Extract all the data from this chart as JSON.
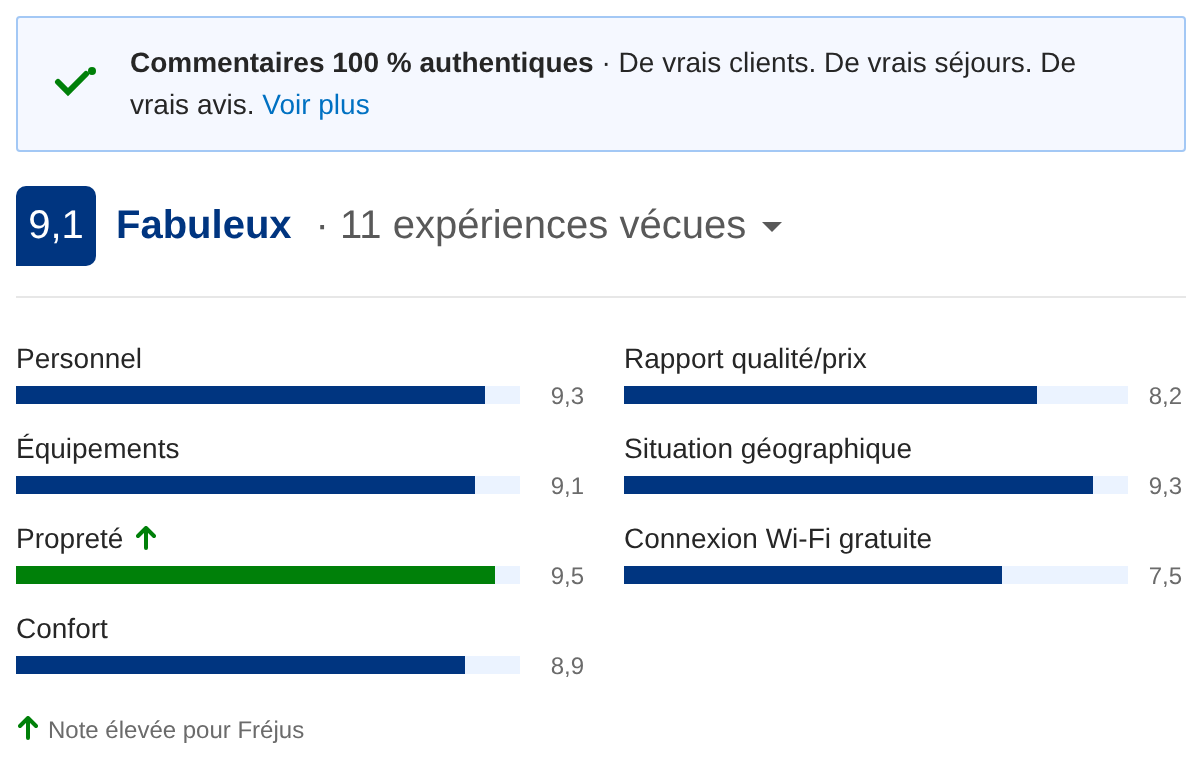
{
  "chart_data": [
    {
      "type": "other",
      "annotations": [
        "Commentaires 100 % authentiques",
        "· De vrais clients. De vrais séjours. De vrais avis.",
        "Voir plus",
        "9,1",
        "Fabuleux",
        "· 11 expériences vécues"
      ]
    },
    {
      "type": "bar",
      "orientation": "horizontal",
      "categories": [
        "Personnel",
        "Équipements",
        "Propreté",
        "Confort"
      ],
      "values": [
        9.3,
        9.1,
        9.5,
        8.9
      ],
      "colors": [
        "#003580",
        "#003580",
        "#008009",
        "#003580"
      ],
      "value_labels": [
        "9,3",
        "9,1",
        "9,5",
        "8,9"
      ],
      "xlim": [
        0,
        10
      ],
      "tick_labels": false,
      "grid": false,
      "annotations": [
        "Note élevée pour Fréjus"
      ]
    },
    {
      "type": "bar",
      "orientation": "horizontal",
      "categories": [
        "Rapport qualité/prix",
        "Situation géographique",
        "Connexion Wi-Fi gratuite"
      ],
      "values": [
        8.2,
        9.3,
        7.5
      ],
      "colors": [
        "#003580",
        "#003580",
        "#003580"
      ],
      "value_labels": [
        "8,2",
        "9,3",
        "7,5"
      ],
      "xlim": [
        0,
        10
      ],
      "tick_labels": false,
      "grid": false
    }
  ]
}
